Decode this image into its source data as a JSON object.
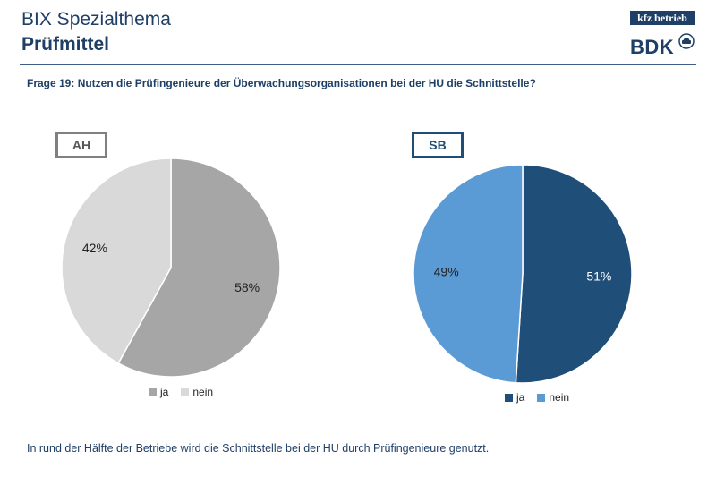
{
  "header": {
    "title": "BIX Spezialthema",
    "subtitle": "Prüfmittel",
    "logo_top": "kfz betrieb",
    "logo_bottom": "BDK"
  },
  "question": "Frage 19: Nutzen die Prüfingenieure der Überwachungsorganisationen bei der HU die Schnittstelle?",
  "footer": "In rund der Hälfte der Betriebe wird die Schnittstelle bei der HU durch Prüfingenieure genutzt.",
  "chart_data": [
    {
      "type": "pie",
      "title": "AH",
      "categories": [
        "ja",
        "nein"
      ],
      "values": [
        58,
        42
      ],
      "value_labels": [
        "58%",
        "42%"
      ],
      "colors": [
        "#a6a6a6",
        "#d9d9d9"
      ],
      "legend": {
        "position": "bottom",
        "entries": [
          "ja",
          "nein"
        ]
      }
    },
    {
      "type": "pie",
      "title": "SB",
      "categories": [
        "ja",
        "nein"
      ],
      "values": [
        51,
        49
      ],
      "value_labels": [
        "51%",
        "49%"
      ],
      "colors": [
        "#1f4e79",
        "#5b9bd5"
      ],
      "legend": {
        "position": "bottom",
        "entries": [
          "ja",
          "nein"
        ]
      }
    }
  ]
}
